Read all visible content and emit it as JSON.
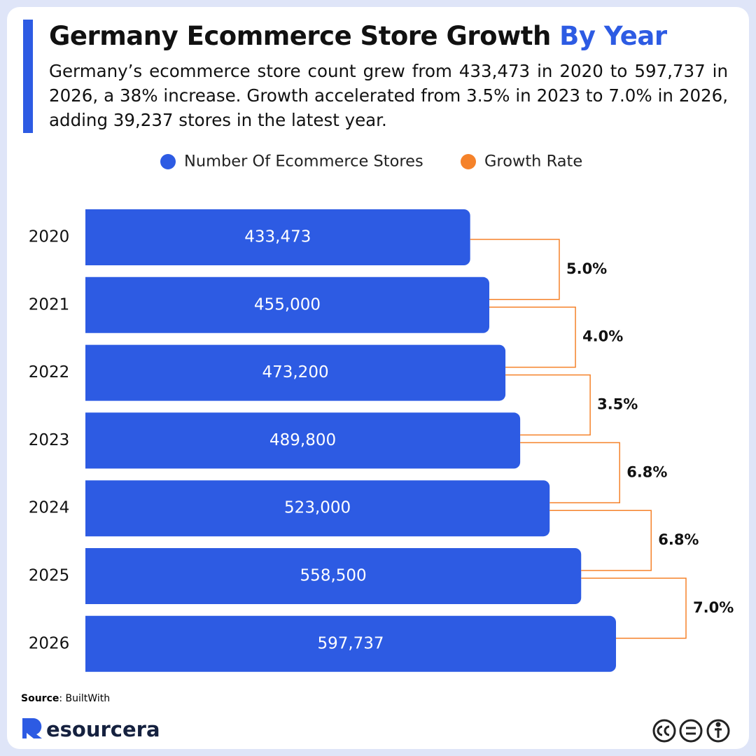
{
  "chart_data": {
    "type": "bar",
    "title": "Germany Ecommerce Store Growth",
    "title_highlight": "By Year",
    "subtitle": "Germany’s ecommerce store count grew from 433,473 in 2020 to 597,737 in 2026, a 38% increase. Growth accelerated from 3.5% in 2023 to 7.0% in 2026, adding 39,237 stores in the latest year.",
    "categories": [
      "2020",
      "2021",
      "2022",
      "2023",
      "2024",
      "2025",
      "2026"
    ],
    "series": [
      {
        "name": "Number Of Ecommerce Stores",
        "color": "#2d5be3",
        "values": [
          433473,
          455000,
          473200,
          489800,
          523000,
          558500,
          597737
        ],
        "value_labels": [
          "433,473",
          "455,000",
          "473,200",
          "489,800",
          "523,000",
          "558,500",
          "597,737"
        ]
      },
      {
        "name": "Growth Rate",
        "color": "#f5822a",
        "values": [
          null,
          5.0,
          4.0,
          3.5,
          6.8,
          6.8,
          7.0
        ],
        "value_labels": [
          null,
          "5.0%",
          "4.0%",
          "3.5%",
          "6.8%",
          "6.8%",
          "7.0%"
        ]
      }
    ],
    "source_label": "Source",
    "source": "BuiltWith",
    "brand": "esourcera"
  }
}
